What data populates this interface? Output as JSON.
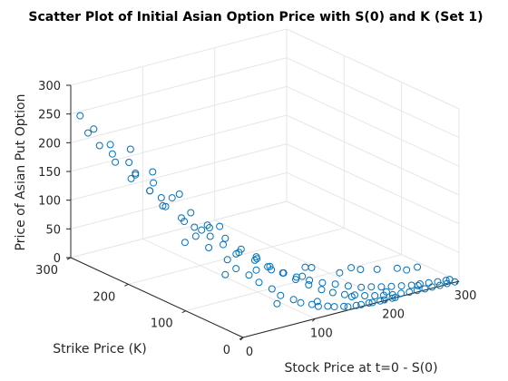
{
  "chart_data": {
    "type": "scatter",
    "title": "Scatter Plot of Initial Asian Option Price with S(0) and K (Set 1)",
    "xlabel": "Stock Price at t=0 - S(0)",
    "ylabel": "Strike Price (K)",
    "zlabel": "Price of Asian Put Option",
    "xlim": [
      0,
      300
    ],
    "ylim": [
      0,
      300
    ],
    "zlim": [
      0,
      300
    ],
    "xticks": [
      "0",
      "100",
      "200",
      "300"
    ],
    "yticks": [
      "0",
      "100",
      "200",
      "300"
    ],
    "zticks": [
      "0",
      "50",
      "100",
      "150",
      "200",
      "250",
      "300"
    ],
    "grid": true,
    "marker": "circle",
    "marker_color": "#0072bd",
    "series": [
      {
        "x": [
          5,
          8,
          12,
          15,
          10,
          20,
          25,
          18,
          30,
          35,
          22,
          40,
          45,
          28,
          50,
          55,
          38,
          60,
          65,
          42,
          70,
          75,
          48,
          80,
          85,
          58,
          90,
          95,
          62,
          100,
          105,
          72,
          110,
          115,
          78,
          120,
          125,
          88,
          130,
          135,
          92,
          140,
          145,
          102,
          150,
          155,
          108,
          160,
          165,
          118,
          170,
          175,
          122,
          180,
          185,
          132,
          190,
          195,
          138,
          200,
          205,
          148,
          210,
          215,
          152,
          220,
          225,
          162,
          230,
          235,
          168,
          240,
          245,
          178,
          250,
          255,
          182,
          260,
          265,
          192,
          270,
          275,
          198,
          280,
          285,
          208,
          290,
          295,
          212,
          10,
          30,
          50,
          70,
          90,
          110,
          130,
          150,
          170,
          190,
          210,
          230,
          250,
          270,
          290,
          15,
          35,
          55,
          75,
          95,
          115,
          135,
          155,
          175,
          195,
          215,
          235,
          255,
          275,
          295
        ],
        "y": [
          290,
          270,
          285,
          250,
          240,
          275,
          230,
          210,
          260,
          200,
          190,
          245,
          180,
          170,
          225,
          160,
          150,
          215,
          140,
          135,
          195,
          125,
          120,
          185,
          110,
          100,
          170,
          95,
          90,
          160,
          85,
          80,
          145,
          75,
          70,
          130,
          65,
          60,
          120,
          55,
          50,
          105,
          45,
          40,
          95,
          38,
          35,
          85,
          30,
          28,
          75,
          25,
          22,
          65,
          20,
          18,
          55,
          15,
          14,
          45,
          12,
          10,
          40,
          9,
          8,
          35,
          7,
          6,
          30,
          5,
          5,
          25,
          4,
          4,
          20,
          3,
          3,
          18,
          3,
          2,
          15,
          2,
          2,
          12,
          2,
          1,
          10,
          1,
          1,
          200,
          180,
          220,
          160,
          175,
          150,
          140,
          165,
          110,
          130,
          95,
          100,
          80,
          70,
          60,
          120,
          240,
          100,
          205,
          60,
          185,
          40,
          145,
          30,
          125,
          20,
          90,
          15,
          60,
          10
        ],
        "z": [
          250,
          235,
          220,
          215,
          205,
          200,
          190,
          180,
          175,
          165,
          160,
          150,
          145,
          140,
          135,
          125,
          120,
          110,
          105,
          100,
          95,
          90,
          85,
          80,
          75,
          70,
          68,
          62,
          58,
          55,
          50,
          48,
          45,
          40,
          38,
          35,
          30,
          28,
          25,
          22,
          20,
          18,
          15,
          14,
          12,
          10,
          9,
          8,
          7,
          6,
          5,
          5,
          4,
          4,
          3,
          3,
          2,
          2,
          2,
          1,
          1,
          1,
          1,
          0,
          0,
          0,
          0,
          0,
          0,
          0,
          0,
          0,
          0,
          0,
          0,
          0,
          0,
          0,
          0,
          0,
          0,
          0,
          0,
          0,
          0,
          0,
          0,
          0,
          0,
          190,
          150,
          170,
          90,
          85,
          40,
          10,
          15,
          0,
          0,
          0,
          0,
          0,
          0,
          0,
          105,
          205,
          45,
          130,
          0,
          70,
          0,
          0,
          0,
          0,
          0,
          0,
          0,
          0,
          0
        ]
      }
    ]
  }
}
